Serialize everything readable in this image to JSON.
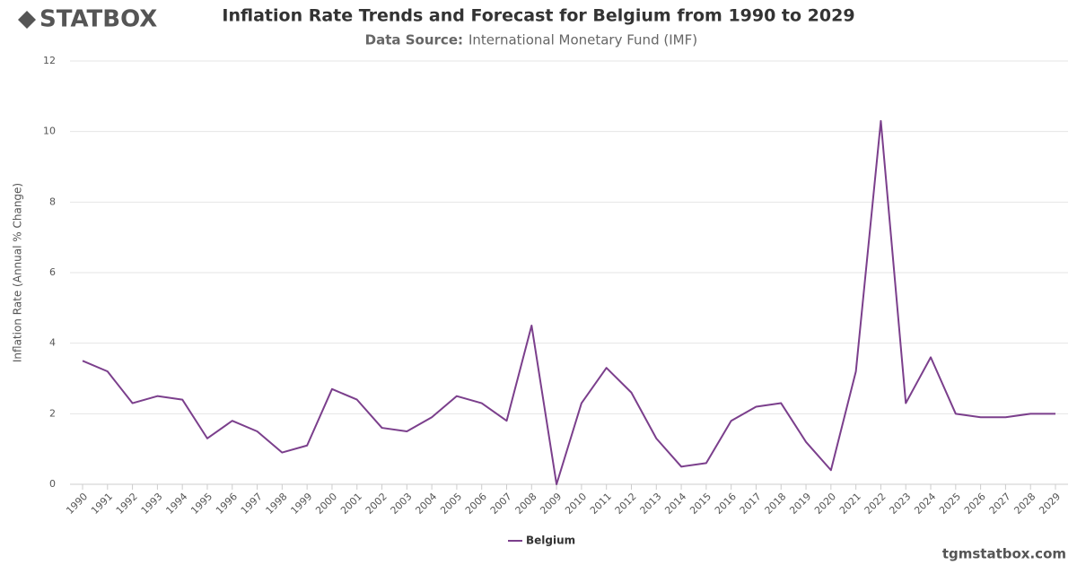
{
  "brand": "STATBOX",
  "watermark": "tgmstatbox.com",
  "chart_data": {
    "type": "line",
    "title": "Inflation Rate Trends and Forecast for Belgium from 1990 to 2029",
    "source_label": "Data Source:",
    "source": "International Monetary Fund (IMF)",
    "y_label": "Inflation Rate (Annual % Change)",
    "categories": [
      "1990",
      "1991",
      "1992",
      "1993",
      "1994",
      "1995",
      "1996",
      "1997",
      "1998",
      "1999",
      "2000",
      "2001",
      "2002",
      "2003",
      "2004",
      "2005",
      "2006",
      "2007",
      "2008",
      "2009",
      "2010",
      "2011",
      "2012",
      "2013",
      "2014",
      "2015",
      "2016",
      "2017",
      "2018",
      "2019",
      "2020",
      "2021",
      "2022",
      "2023",
      "2024",
      "2025",
      "2026",
      "2027",
      "2028",
      "2029"
    ],
    "series": [
      {
        "name": "Belgium",
        "color": "#7b3f8c",
        "values": [
          3.5,
          3.2,
          2.3,
          2.5,
          2.4,
          1.3,
          1.8,
          1.5,
          0.9,
          1.1,
          2.7,
          2.4,
          1.6,
          1.5,
          1.9,
          2.5,
          2.3,
          1.8,
          4.5,
          0.0,
          2.3,
          3.3,
          2.6,
          1.3,
          0.5,
          0.6,
          1.8,
          2.2,
          2.3,
          1.2,
          0.4,
          3.2,
          10.3,
          2.3,
          3.6,
          2.0,
          1.9,
          1.9,
          2.0,
          2.0
        ]
      }
    ],
    "ylim": [
      0,
      12
    ],
    "yticks": [
      0,
      2,
      4,
      6,
      8,
      10,
      12
    ],
    "grid": true,
    "legend": "bottom"
  }
}
